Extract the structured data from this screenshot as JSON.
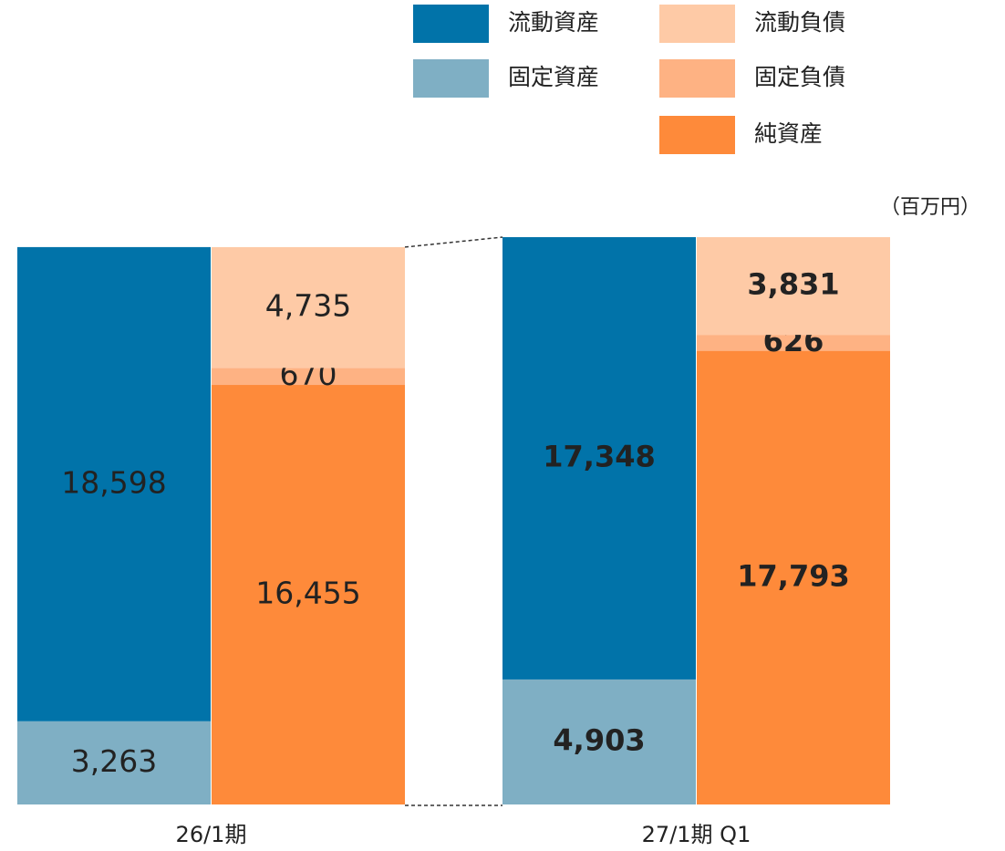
{
  "chart_data": {
    "type": "balance_sheet",
    "unit": "（百万円）",
    "categories": [
      "26/1期",
      "27/1期 Q1"
    ],
    "stacks": [
      [
        {
          "name": "流動資産",
          "color": "#0173a9",
          "values": [
            18598,
            17348
          ],
          "value_labels": [
            "18,598",
            "17,348"
          ]
        },
        {
          "name": "固定資産",
          "color": "#7fafc4",
          "values": [
            3263,
            4903
          ],
          "value_labels": [
            "3,263",
            "4,903"
          ]
        }
      ],
      [
        {
          "name": "流動負債",
          "color": "#fecaa6",
          "values": [
            4735,
            3831
          ],
          "value_labels": [
            "4,735",
            "3,831"
          ]
        },
        {
          "name": "固定負債",
          "color": "#feb283",
          "values": [
            670,
            626
          ],
          "value_labels": [
            "670",
            "626"
          ]
        },
        {
          "name": "純資産",
          "color": "#fe8a3a",
          "values": [
            16455,
            17793
          ],
          "value_labels": [
            "16,455",
            "17,793"
          ]
        }
      ]
    ]
  }
}
